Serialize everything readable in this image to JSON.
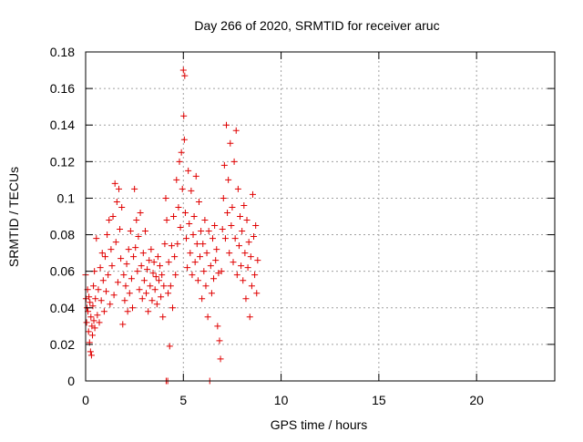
{
  "chart_data": {
    "type": "scatter",
    "title": "Day 266 of 2020, SRMTID for receiver aruc",
    "xlabel": "GPS time / hours",
    "ylabel": "SRMTID / TECUs",
    "xlim": [
      0,
      24
    ],
    "ylim": [
      0,
      0.18
    ],
    "x_ticks": [
      0,
      5,
      10,
      15,
      20
    ],
    "y_ticks": [
      0,
      0.02,
      0.04,
      0.06,
      0.08,
      0.1,
      0.12,
      0.14,
      0.16,
      0.18
    ],
    "x_tick_labels": [
      "0",
      "5",
      "10",
      "15",
      "20"
    ],
    "y_tick_labels": [
      "0",
      "0.02",
      "0.04",
      "0.06",
      "0.08",
      "0.1",
      "0.12",
      "0.14",
      "0.16",
      "0.18"
    ],
    "grid": true,
    "marker": "+",
    "series": [
      {
        "color": "#e00000",
        "points": [
          [
            0.0,
            0.058
          ],
          [
            0.02,
            0.045
          ],
          [
            0.05,
            0.032
          ],
          [
            0.07,
            0.04
          ],
          [
            0.1,
            0.05
          ],
          [
            0.12,
            0.038
          ],
          [
            0.15,
            0.027
          ],
          [
            0.17,
            0.046
          ],
          [
            0.2,
            0.021
          ],
          [
            0.22,
            0.043
          ],
          [
            0.25,
            0.016
          ],
          [
            0.27,
            0.035
          ],
          [
            0.3,
            0.014
          ],
          [
            0.32,
            0.03
          ],
          [
            0.35,
            0.025
          ],
          [
            0.37,
            0.041
          ],
          [
            0.4,
            0.052
          ],
          [
            0.42,
            0.033
          ],
          [
            0.45,
            0.06
          ],
          [
            0.47,
            0.029
          ],
          [
            0.5,
            0.045
          ],
          [
            0.55,
            0.078
          ],
          [
            0.6,
            0.036
          ],
          [
            0.65,
            0.05
          ],
          [
            0.7,
            0.032
          ],
          [
            0.75,
            0.062
          ],
          [
            0.8,
            0.044
          ],
          [
            0.85,
            0.07
          ],
          [
            0.9,
            0.055
          ],
          [
            0.95,
            0.038
          ],
          [
            1.0,
            0.068
          ],
          [
            1.05,
            0.049
          ],
          [
            1.1,
            0.08
          ],
          [
            1.15,
            0.058
          ],
          [
            1.2,
            0.088
          ],
          [
            1.25,
            0.042
          ],
          [
            1.3,
            0.072
          ],
          [
            1.35,
            0.063
          ],
          [
            1.4,
            0.09
          ],
          [
            1.45,
            0.047
          ],
          [
            1.5,
            0.108
          ],
          [
            1.55,
            0.076
          ],
          [
            1.6,
            0.098
          ],
          [
            1.65,
            0.054
          ],
          [
            1.7,
            0.105
          ],
          [
            1.75,
            0.083
          ],
          [
            1.8,
            0.067
          ],
          [
            1.85,
            0.095
          ],
          [
            1.9,
            0.031
          ],
          [
            1.95,
            0.058
          ],
          [
            2.0,
            0.044
          ],
          [
            2.05,
            0.052
          ],
          [
            2.1,
            0.064
          ],
          [
            2.15,
            0.038
          ],
          [
            2.2,
            0.072
          ],
          [
            2.25,
            0.048
          ],
          [
            2.3,
            0.082
          ],
          [
            2.35,
            0.056
          ],
          [
            2.4,
            0.04
          ],
          [
            2.45,
            0.068
          ],
          [
            2.5,
            0.105
          ],
          [
            2.55,
            0.073
          ],
          [
            2.6,
            0.088
          ],
          [
            2.65,
            0.06
          ],
          [
            2.7,
            0.079
          ],
          [
            2.75,
            0.05
          ],
          [
            2.8,
            0.092
          ],
          [
            2.85,
            0.063
          ],
          [
            2.9,
            0.045
          ],
          [
            2.95,
            0.07
          ],
          [
            3.0,
            0.055
          ],
          [
            3.05,
            0.082
          ],
          [
            3.1,
            0.048
          ],
          [
            3.15,
            0.061
          ],
          [
            3.2,
            0.038
          ],
          [
            3.25,
            0.066
          ],
          [
            3.3,
            0.052
          ],
          [
            3.35,
            0.072
          ],
          [
            3.4,
            0.044
          ],
          [
            3.45,
            0.059
          ],
          [
            3.5,
            0.065
          ],
          [
            3.55,
            0.05
          ],
          [
            3.6,
            0.057
          ],
          [
            3.65,
            0.042
          ],
          [
            3.7,
            0.068
          ],
          [
            3.75,
            0.055
          ],
          [
            3.8,
            0.063
          ],
          [
            3.85,
            0.046
          ],
          [
            3.9,
            0.058
          ],
          [
            3.95,
            0.035
          ],
          [
            4.0,
            0.052
          ],
          [
            4.05,
            0.075
          ],
          [
            4.1,
            0.1
          ],
          [
            4.12,
            0.0
          ],
          [
            4.15,
            0.088
          ],
          [
            4.2,
            0.0
          ],
          [
            4.22,
            0.048
          ],
          [
            4.25,
            0.065
          ],
          [
            4.3,
            0.019
          ],
          [
            4.35,
            0.052
          ],
          [
            4.4,
            0.074
          ],
          [
            4.45,
            0.04
          ],
          [
            4.5,
            0.09
          ],
          [
            4.55,
            0.068
          ],
          [
            4.6,
            0.058
          ],
          [
            4.65,
            0.11
          ],
          [
            4.7,
            0.075
          ],
          [
            4.75,
            0.095
          ],
          [
            4.8,
            0.12
          ],
          [
            4.85,
            0.084
          ],
          [
            4.9,
            0.125
          ],
          [
            4.95,
            0.105
          ],
          [
            5.0,
            0.17
          ],
          [
            5.02,
            0.145
          ],
          [
            5.05,
            0.132
          ],
          [
            5.07,
            0.167
          ],
          [
            5.1,
            0.092
          ],
          [
            5.15,
            0.078
          ],
          [
            5.2,
            0.062
          ],
          [
            5.25,
            0.115
          ],
          [
            5.3,
            0.086
          ],
          [
            5.35,
            0.07
          ],
          [
            5.4,
            0.104
          ],
          [
            5.45,
            0.058
          ],
          [
            5.5,
            0.08
          ],
          [
            5.55,
            0.09
          ],
          [
            5.6,
            0.065
          ],
          [
            5.65,
            0.112
          ],
          [
            5.7,
            0.075
          ],
          [
            5.75,
            0.055
          ],
          [
            5.8,
            0.098
          ],
          [
            5.85,
            0.068
          ],
          [
            5.9,
            0.082
          ],
          [
            5.95,
            0.045
          ],
          [
            6.0,
            0.075
          ],
          [
            6.05,
            0.06
          ],
          [
            6.1,
            0.088
          ],
          [
            6.15,
            0.052
          ],
          [
            6.2,
            0.07
          ],
          [
            6.25,
            0.035
          ],
          [
            6.3,
            0.082
          ],
          [
            6.35,
            0.0
          ],
          [
            6.4,
            0.063
          ],
          [
            6.45,
            0.048
          ],
          [
            6.5,
            0.078
          ],
          [
            6.55,
            0.056
          ],
          [
            6.6,
            0.085
          ],
          [
            6.65,
            0.066
          ],
          [
            6.7,
            0.072
          ],
          [
            6.75,
            0.03
          ],
          [
            6.8,
            0.059
          ],
          [
            6.85,
            0.022
          ],
          [
            6.9,
            0.012
          ],
          [
            6.95,
            0.06
          ],
          [
            7.0,
            0.083
          ],
          [
            7.05,
            0.1
          ],
          [
            7.1,
            0.118
          ],
          [
            7.15,
            0.078
          ],
          [
            7.2,
            0.14
          ],
          [
            7.25,
            0.092
          ],
          [
            7.3,
            0.11
          ],
          [
            7.35,
            0.07
          ],
          [
            7.4,
            0.13
          ],
          [
            7.45,
            0.085
          ],
          [
            7.5,
            0.095
          ],
          [
            7.55,
            0.065
          ],
          [
            7.6,
            0.12
          ],
          [
            7.65,
            0.078
          ],
          [
            7.7,
            0.137
          ],
          [
            7.75,
            0.058
          ],
          [
            7.8,
            0.105
          ],
          [
            7.85,
            0.074
          ],
          [
            7.9,
            0.09
          ],
          [
            7.95,
            0.063
          ],
          [
            8.0,
            0.082
          ],
          [
            8.05,
            0.055
          ],
          [
            8.1,
            0.096
          ],
          [
            8.15,
            0.07
          ],
          [
            8.2,
            0.045
          ],
          [
            8.25,
            0.088
          ],
          [
            8.3,
            0.062
          ],
          [
            8.35,
            0.076
          ],
          [
            8.4,
            0.035
          ],
          [
            8.45,
            0.068
          ],
          [
            8.5,
            0.052
          ],
          [
            8.55,
            0.102
          ],
          [
            8.6,
            0.079
          ],
          [
            8.65,
            0.058
          ],
          [
            8.7,
            0.085
          ],
          [
            8.75,
            0.048
          ],
          [
            8.8,
            0.066
          ]
        ]
      }
    ]
  }
}
